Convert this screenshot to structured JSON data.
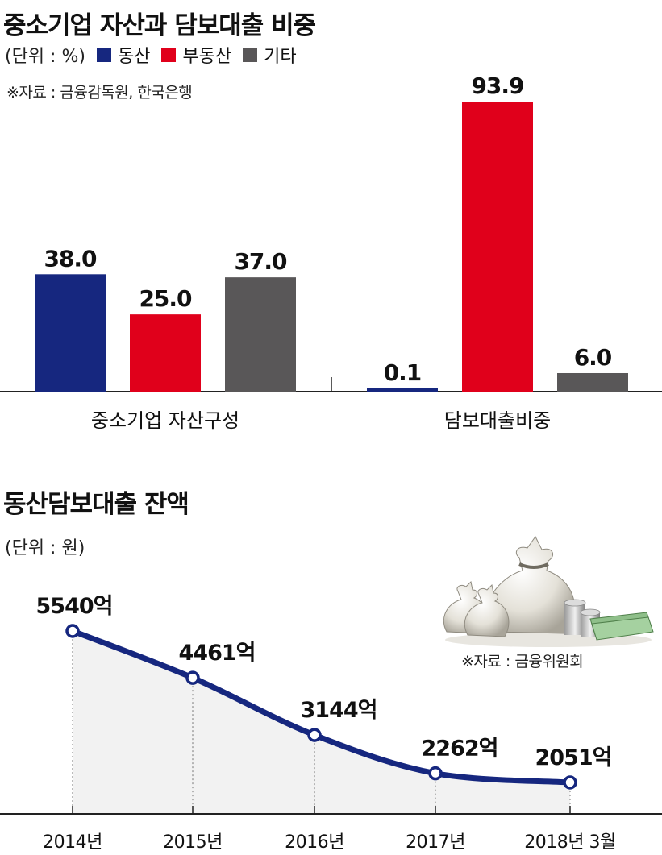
{
  "chart1": {
    "title": "중소기업 자산과 담보대출 비중",
    "unit": "(단위 : %)",
    "source": "※자료 : 금융감독원, 한국은행",
    "colors": {
      "movable": "#16277f",
      "real_estate": "#e0001b",
      "other": "#595758"
    }
  },
  "chart2": {
    "title": "동산담보대출 잔액",
    "unit": "(단위 : 원)",
    "source": "※자료 : 금융위원회",
    "colors": {
      "line": "#16277f",
      "area": "#f2f2f2"
    }
  },
  "chart_data": [
    {
      "type": "bar",
      "title": "중소기업 자산과 담보대출 비중",
      "unit": "%",
      "categories": [
        "중소기업 자산구성",
        "담보대출비중"
      ],
      "series": [
        {
          "name": "동산",
          "values": [
            38.0,
            0.1
          ],
          "labels": [
            "38.0",
            "0.1"
          ],
          "color": "#16277f"
        },
        {
          "name": "부동산",
          "values": [
            25.0,
            93.9
          ],
          "labels": [
            "25.0",
            "93.9"
          ],
          "color": "#e0001b"
        },
        {
          "name": "기타",
          "values": [
            37.0,
            6.0
          ],
          "labels": [
            "37.0",
            "6.0"
          ],
          "color": "#595758"
        }
      ],
      "ylim": [
        0,
        100
      ],
      "legend": "top-left",
      "grid": false
    },
    {
      "type": "area",
      "title": "동산담보대출 잔액",
      "unit": "원",
      "x": [
        "2014년",
        "2015년",
        "2016년",
        "2017년",
        "2018년 3월"
      ],
      "values": [
        5540,
        4461,
        3144,
        2262,
        2051
      ],
      "labels": [
        "5540억",
        "4461억",
        "3144억",
        "2262억",
        "2051억"
      ],
      "ylim": [
        0,
        6000
      ],
      "grid": false
    }
  ]
}
